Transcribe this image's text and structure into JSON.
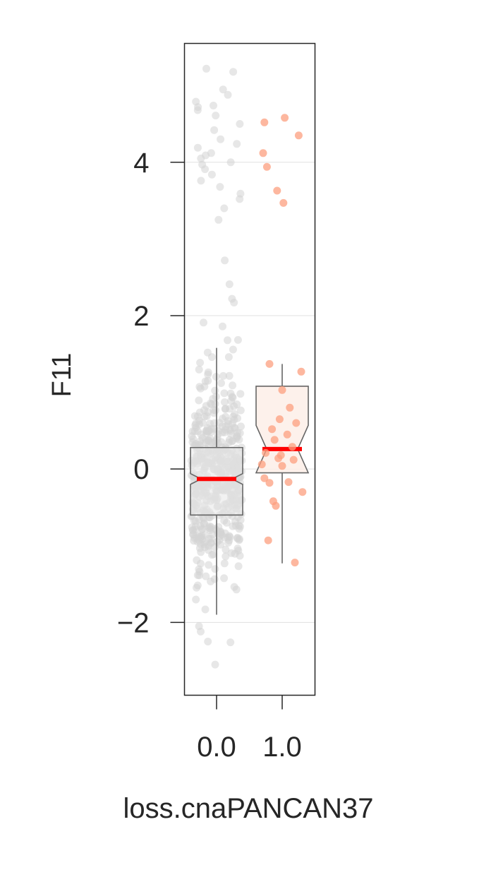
{
  "chart_data": {
    "type": "box",
    "notched": true,
    "xlabel": "loss.cnaPANCAN37",
    "ylabel": "F11",
    "ylim": [
      -2.95,
      5.55
    ],
    "yticks": [
      -2,
      0,
      2,
      4
    ],
    "ytick_labels": [
      "−2",
      "0",
      "2",
      "4"
    ],
    "grid": "horizontal",
    "categories": [
      "0.0",
      "1.0"
    ],
    "colors": {
      "group_0_points": "#d3d3d3",
      "group_0_box_fill": "#e8e8e8",
      "group_1_points": "#fc9f7f",
      "group_1_box_fill": "#fdeee8",
      "box_edge": "#666666",
      "median": "#ff0000",
      "axes": "#262626",
      "grid": "#e0e0e0"
    },
    "boxes": [
      {
        "category": "0.0",
        "q1": -0.6,
        "median": -0.13,
        "q3": 0.28,
        "whisker_low": -1.9,
        "whisker_high": 1.58,
        "notch_low": -0.2,
        "notch_high": -0.06
      },
      {
        "category": "1.0",
        "q1": -0.05,
        "median": 0.26,
        "q3": 1.08,
        "whisker_low": -1.23,
        "whisker_high": 1.37,
        "notch_low": -0.05,
        "notch_high": 0.57
      }
    ],
    "points": [
      {
        "category": "1.0",
        "y": [
          4.52,
          4.58,
          4.35,
          4.12,
          3.94,
          3.63,
          3.47,
          1.37,
          1.27,
          1.03,
          0.8,
          0.65,
          0.6,
          0.52,
          0.45,
          0.38,
          0.29,
          0.21,
          0.18,
          0.14,
          0.12,
          0.06,
          0.04,
          -0.12,
          -0.17,
          -0.18,
          -0.3,
          -0.42,
          -0.48,
          -0.93,
          -1.22
        ]
      }
    ]
  }
}
